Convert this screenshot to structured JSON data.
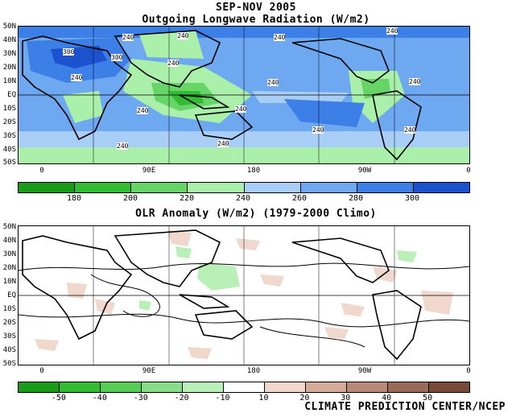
{
  "header": {
    "period": "SEP-NOV 2005",
    "top_title": "Outgoing Longwave Radiation (W/m2)",
    "bottom_title": "OLR Anomaly (W/m2) (1979-2000 Climo)"
  },
  "lat_labels": [
    "50N",
    "40N",
    "30N",
    "20N",
    "10N",
    "EQ",
    "10S",
    "20S",
    "30S",
    "40S",
    "50S"
  ],
  "lon_labels": [
    "0",
    "90E",
    "180",
    "90W",
    "0"
  ],
  "top_map": {
    "contour_labels": [
      "240",
      "240",
      "300",
      "300",
      "240",
      "240",
      "240",
      "240",
      "240",
      "240",
      "240",
      "240",
      "240",
      "240",
      "240",
      "240"
    ]
  },
  "top_colorbar": {
    "ticks": [
      "180",
      "200",
      "220",
      "240",
      "260",
      "280",
      "300"
    ],
    "colors": [
      "#1a9c1a",
      "#33bb33",
      "#66d466",
      "#aaf0aa",
      "#a8cdf7",
      "#6ea8f0",
      "#3c7fe6",
      "#1d52cf"
    ]
  },
  "bottom_colorbar": {
    "ticks": [
      "-50",
      "-40",
      "-30",
      "-20",
      "-10",
      "10",
      "20",
      "30",
      "40",
      "50"
    ],
    "colors": [
      "#1a9c1a",
      "#33bb33",
      "#55cc55",
      "#88dd88",
      "#b8f0b8",
      "#ffffff",
      "#f0d8cc",
      "#d4aa98",
      "#b98876",
      "#9a6a58",
      "#7a4a38"
    ]
  },
  "footer": {
    "credit": "CLIMATE PREDICTION CENTER/NCEP"
  }
}
